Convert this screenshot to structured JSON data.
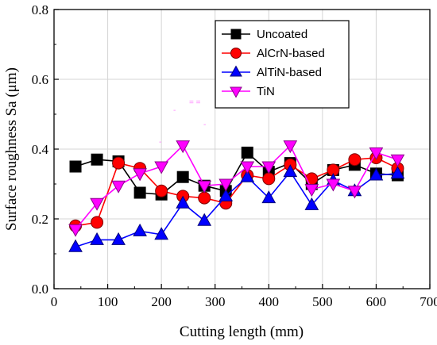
{
  "chart_data": {
    "type": "line",
    "xlabel": "Cutting length (mm)",
    "ylabel": "Surface roughness Sa (μm)",
    "xlim": [
      0,
      700
    ],
    "ylim": [
      0.0,
      0.8
    ],
    "xticks": [
      0,
      100,
      200,
      300,
      400,
      500,
      600,
      700
    ],
    "xtick_labels": [
      "0",
      "100",
      "200",
      "300",
      "400",
      "500",
      "600",
      "700"
    ],
    "yticks": [
      0.0,
      0.2,
      0.4,
      0.6,
      0.8
    ],
    "ytick_labels": [
      "0.0",
      "0.2",
      "0.4",
      "0.6",
      "0.8"
    ],
    "grid": true,
    "legend_position": "top-right",
    "x": [
      40,
      80,
      120,
      160,
      200,
      240,
      280,
      320,
      360,
      400,
      440,
      480,
      520,
      560,
      600,
      640
    ],
    "series": [
      {
        "name": "Uncoated",
        "color": "#000000",
        "marker": "square",
        "values": [
          0.35,
          0.37,
          0.365,
          0.275,
          0.27,
          0.32,
          0.295,
          0.28,
          0.39,
          0.335,
          0.36,
          0.3,
          0.34,
          0.355,
          0.33,
          0.325
        ]
      },
      {
        "name": "AlCrN-based",
        "color": "#ff0000",
        "marker": "circle",
        "values": [
          0.18,
          0.19,
          0.36,
          0.345,
          0.28,
          0.265,
          0.26,
          0.245,
          0.325,
          0.315,
          0.355,
          0.315,
          0.34,
          0.37,
          0.375,
          0.345
        ]
      },
      {
        "name": "AlTiN-based",
        "color": "#0000ff",
        "marker": "triangle-up",
        "values": [
          0.12,
          0.14,
          0.14,
          0.165,
          0.155,
          0.245,
          0.195,
          0.265,
          0.32,
          0.26,
          0.335,
          0.24,
          0.31,
          0.28,
          0.325,
          0.33
        ]
      },
      {
        "name": "TiN",
        "color": "#ff00ff",
        "marker": "triangle-down",
        "values": [
          0.17,
          0.245,
          0.295,
          0.33,
          0.35,
          0.41,
          0.295,
          0.3,
          0.35,
          0.35,
          0.41,
          0.285,
          0.3,
          0.28,
          0.39,
          0.37
        ]
      }
    ],
    "annotations": [
      "= =",
      "-",
      "-",
      "-"
    ]
  }
}
